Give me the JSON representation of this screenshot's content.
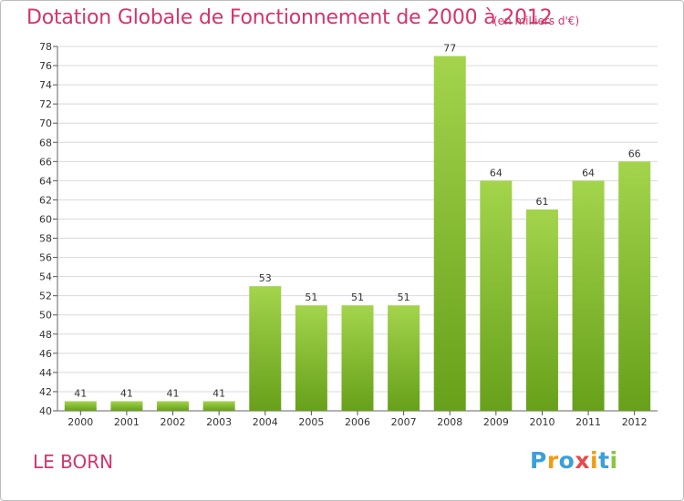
{
  "header": {
    "title": "Dotation Globale de Fonctionnement de 2000 à 2012",
    "subtitle": "(en milliers d'€)"
  },
  "footer": {
    "place": "LE BORN",
    "logo": [
      "P",
      "r",
      "o",
      "x",
      "i",
      "t",
      "i"
    ]
  },
  "colors": {
    "title": "#d6336c",
    "bar_top": "#a3d44c",
    "bar_bottom": "#67a01a",
    "grid": "#d9d9d9",
    "logo": [
      "#3aa0dc",
      "#f39c12",
      "#3aa0dc",
      "#e84a4a",
      "#f39c12",
      "#3aa0dc",
      "#8cc63f"
    ]
  },
  "chart_data": {
    "type": "bar",
    "title": "Dotation Globale de Fonctionnement de 2000 à 2012",
    "categories": [
      "2000",
      "2001",
      "2002",
      "2003",
      "2004",
      "2005",
      "2006",
      "2007",
      "2008",
      "2009",
      "2010",
      "2011",
      "2012"
    ],
    "values": [
      41,
      41,
      41,
      41,
      53,
      51,
      51,
      51,
      77,
      64,
      61,
      64,
      66
    ],
    "data_labels": [
      "41",
      "41",
      "41",
      "41",
      "53",
      "51",
      "51",
      "51",
      "77",
      "64",
      "61",
      "64",
      "66"
    ],
    "ylim": [
      40,
      78
    ],
    "yticks": [
      "40",
      "42",
      "44",
      "46",
      "48",
      "50",
      "52",
      "54",
      "56",
      "58",
      "60",
      "62",
      "64",
      "66",
      "68",
      "70",
      "72",
      "74",
      "76",
      "78"
    ],
    "ytick_values": [
      40,
      42,
      44,
      46,
      48,
      50,
      52,
      54,
      56,
      58,
      60,
      62,
      64,
      66,
      68,
      70,
      72,
      74,
      76,
      78
    ],
    "grid": true,
    "legend": "none"
  }
}
